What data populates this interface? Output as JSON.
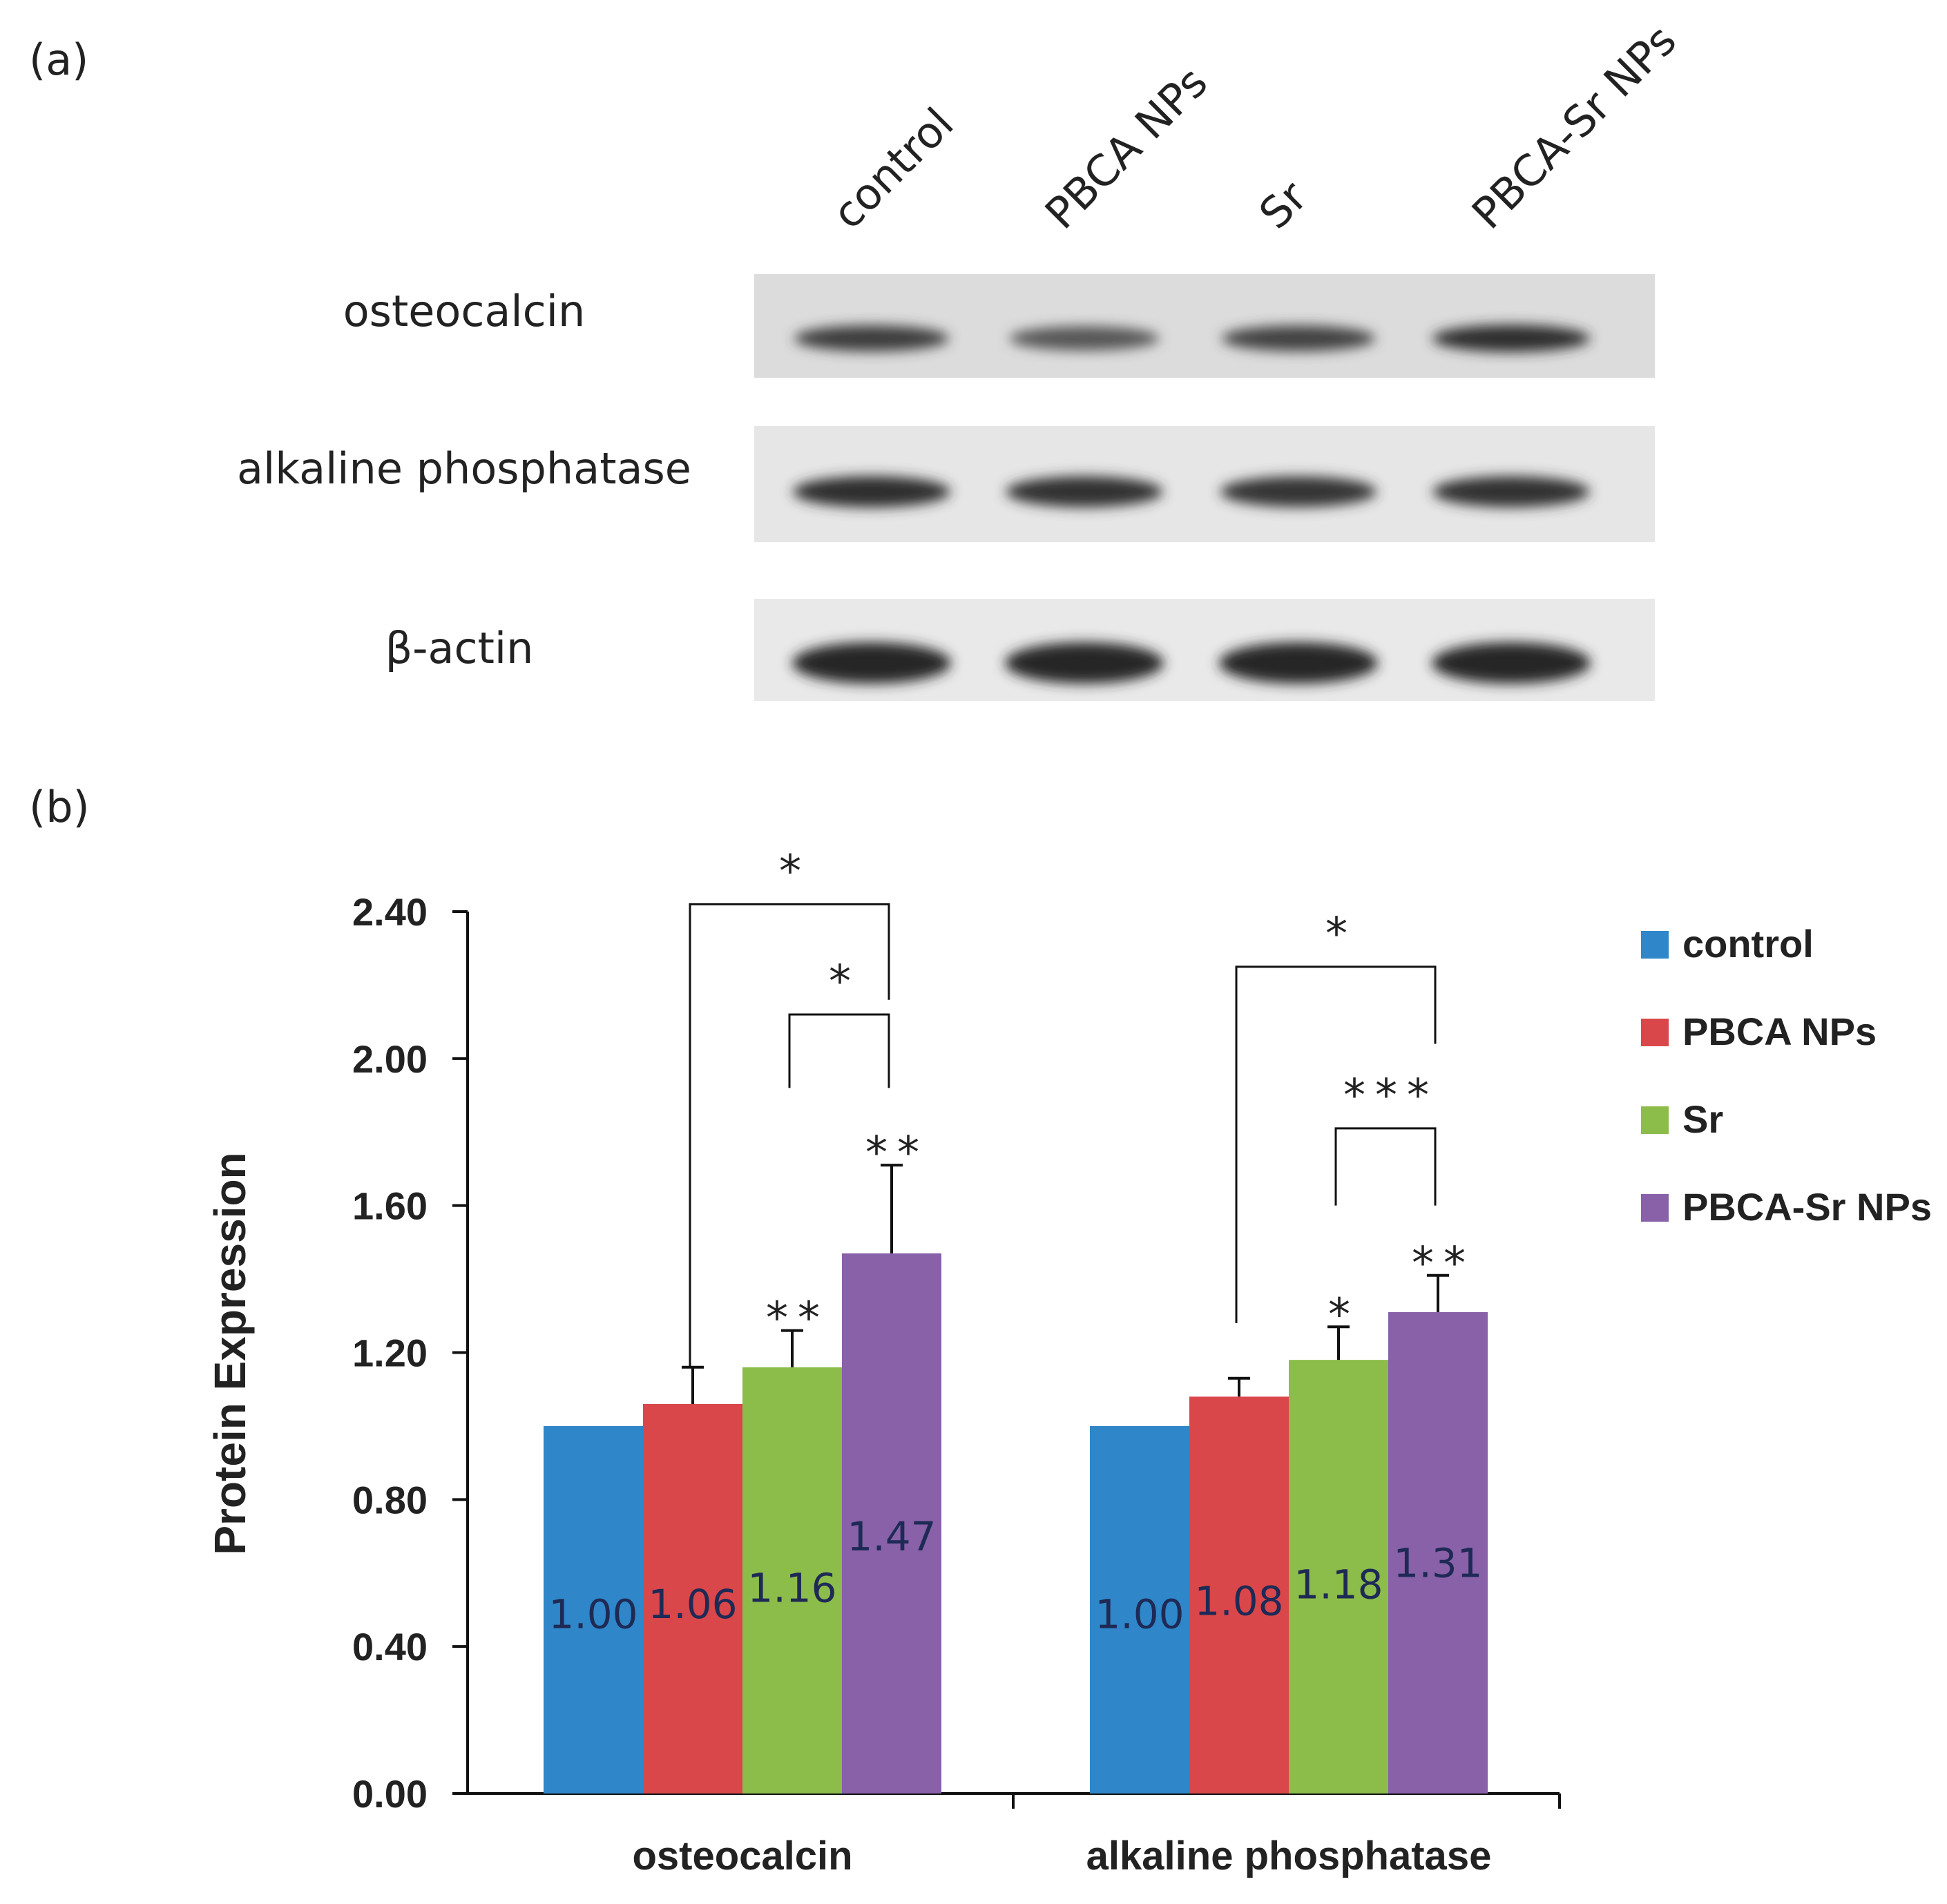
{
  "panel_a": {
    "label": "(a)",
    "lanes": [
      "control",
      "PBCA NPs",
      "Sr",
      "PBCA-Sr NPs"
    ],
    "rows": [
      {
        "label": "osteocalcin",
        "intensity": [
          0.82,
          0.62,
          0.78,
          0.95
        ]
      },
      {
        "label": "alkaline phosphatase",
        "intensity": [
          0.95,
          0.92,
          0.9,
          0.93
        ]
      },
      {
        "label": "β-actin",
        "intensity": [
          1.0,
          1.0,
          1.0,
          1.0
        ]
      }
    ]
  },
  "panel_b": {
    "label": "(b)"
  },
  "colors": {
    "control": "#2f86c8",
    "PBCA NPs": "#d9474a",
    "Sr": "#8cbd4b",
    "PBCA-Sr NPs": "#8861a8"
  },
  "chart_data": {
    "type": "bar",
    "title": "",
    "xlabel": "",
    "ylabel": "Protein Expression",
    "ylim": [
      0,
      2.4
    ],
    "yticks": [
      "0.00",
      "0.40",
      "0.80",
      "1.20",
      "1.60",
      "2.00",
      "2.40"
    ],
    "categories": [
      "osteocalcin",
      "alkaline phosphatase"
    ],
    "legend_position": "right",
    "series": [
      {
        "name": "control",
        "values": [
          1.0,
          1.0
        ],
        "labels": [
          "1.00",
          "1.00"
        ],
        "errors": [
          0,
          0
        ],
        "sig": [
          "",
          ""
        ]
      },
      {
        "name": "PBCA NPs",
        "values": [
          1.06,
          1.08
        ],
        "labels": [
          "1.06",
          "1.08"
        ],
        "errors": [
          0.1,
          0.05
        ],
        "sig": [
          "",
          ""
        ]
      },
      {
        "name": "Sr",
        "values": [
          1.16,
          1.18
        ],
        "labels": [
          "1.16",
          "1.18"
        ],
        "errors": [
          0.1,
          0.09
        ],
        "sig": [
          "**",
          "*"
        ]
      },
      {
        "name": "PBCA-Sr NPs",
        "values": [
          1.47,
          1.31
        ],
        "labels": [
          "1.47",
          "1.31"
        ],
        "errors": [
          0.24,
          0.1
        ],
        "sig": [
          "**",
          "**"
        ]
      }
    ],
    "brackets": [
      {
        "category": 0,
        "from_series": 1,
        "to_series": 3,
        "from_y": 1.16,
        "to_y": 2.16,
        "top": 2.42,
        "label": "*"
      },
      {
        "category": 0,
        "from_series": 2,
        "to_series": 3,
        "from_y": 1.92,
        "to_y": 1.92,
        "top": 2.12,
        "label": "*"
      },
      {
        "category": 1,
        "from_series": 1,
        "to_series": 3,
        "from_y": 1.28,
        "to_y": 2.04,
        "top": 2.25,
        "label": "*"
      },
      {
        "category": 1,
        "from_series": 2,
        "to_series": 3,
        "from_y": 1.6,
        "to_y": 1.6,
        "top": 1.81,
        "label": "***"
      }
    ]
  }
}
